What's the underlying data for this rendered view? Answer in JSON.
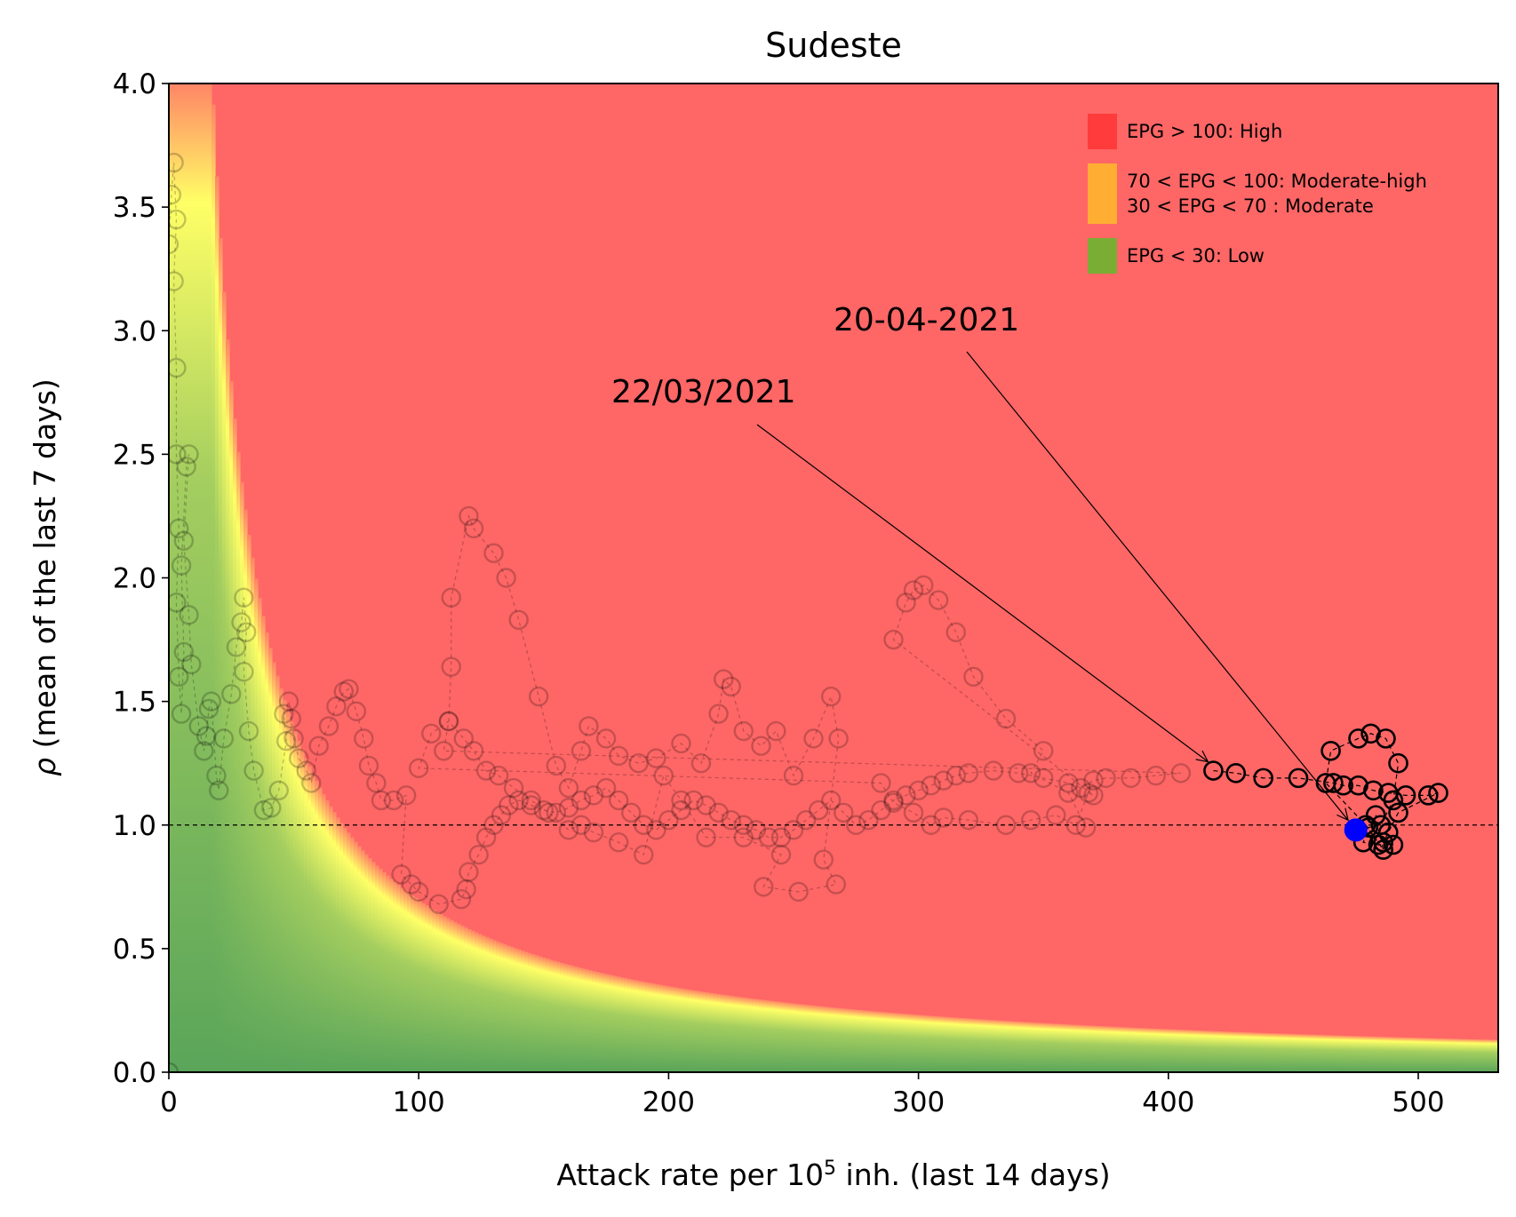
{
  "chart_data": {
    "type": "scatter",
    "title": "Sudeste",
    "xlabel": "Attack rate per 10",
    "xlabel_sup": "5",
    "xlabel_tail": " inh. (last 14 days)",
    "ylabel": "(mean of the last 7 days)",
    "ylabel_symbol": "ρ",
    "xlim": [
      0,
      532
    ],
    "ylim": [
      0,
      4.0
    ],
    "x_ticks": [
      0,
      100,
      200,
      300,
      400,
      500
    ],
    "y_ticks": [
      0.0,
      0.5,
      1.0,
      1.5,
      2.0,
      2.5,
      3.0,
      3.5,
      4.0
    ],
    "x_tick_labels": [
      "0",
      "100",
      "200",
      "300",
      "400",
      "500"
    ],
    "y_tick_labels": [
      "0.0",
      "0.5",
      "1.0",
      "1.5",
      "2.0",
      "2.5",
      "3.0",
      "3.5",
      "4.0"
    ],
    "reference_line_y": 1.0,
    "background": "EPG risk map (attack rate × ρ)",
    "legend_position": "top-right",
    "legend": [
      {
        "label": "EPG > 100: High",
        "color": "#ff3b3b"
      },
      {
        "label": "70 < EPG < 100: Moderate-high",
        "label2": "30 < EPG < 70 : Moderate",
        "color": "#ffae33"
      },
      {
        "label": "EPG < 30: Low",
        "color": "#7aad33"
      }
    ],
    "colors": {
      "high": "#ff6666",
      "moderate_high": "#ffff66",
      "low": "#5aa55a",
      "marker_edge": "#000000",
      "highlight_point": "#0000ff"
    },
    "annotations": [
      {
        "text": "22/03/2021",
        "target": [
          418,
          1.22
        ]
      },
      {
        "text": "20-04-2021",
        "target": [
          473,
          0.98
        ]
      }
    ],
    "series_faded": [
      [
        0,
        0.0
      ],
      [
        0,
        3.35
      ],
      [
        1,
        3.55
      ],
      [
        2,
        3.68
      ],
      [
        3,
        3.45
      ],
      [
        2,
        3.2
      ],
      [
        3,
        2.85
      ],
      [
        3,
        2.5
      ],
      [
        4,
        2.2
      ],
      [
        3,
        1.9
      ],
      [
        4,
        1.6
      ],
      [
        5,
        1.45
      ],
      [
        6,
        1.7
      ],
      [
        5,
        2.05
      ],
      [
        7,
        2.45
      ],
      [
        8,
        2.5
      ],
      [
        6,
        2.15
      ],
      [
        8,
        1.85
      ],
      [
        9,
        1.65
      ],
      [
        12,
        1.4
      ],
      [
        14,
        1.3
      ],
      [
        15,
        1.36
      ],
      [
        16,
        1.47
      ],
      [
        17,
        1.5
      ],
      [
        19,
        1.2
      ],
      [
        20,
        1.14
      ],
      [
        22,
        1.35
      ],
      [
        25,
        1.53
      ],
      [
        27,
        1.72
      ],
      [
        29,
        1.82
      ],
      [
        30,
        1.92
      ],
      [
        31,
        1.78
      ],
      [
        30,
        1.62
      ],
      [
        32,
        1.38
      ],
      [
        34,
        1.22
      ],
      [
        38,
        1.06
      ],
      [
        41,
        1.07
      ],
      [
        44,
        1.14
      ],
      [
        47,
        1.34
      ],
      [
        46,
        1.45
      ],
      [
        48,
        1.5
      ],
      [
        49,
        1.43
      ],
      [
        50,
        1.35
      ],
      [
        52,
        1.27
      ],
      [
        55,
        1.22
      ],
      [
        57,
        1.17
      ],
      [
        60,
        1.32
      ],
      [
        64,
        1.4
      ],
      [
        67,
        1.48
      ],
      [
        70,
        1.54
      ],
      [
        72,
        1.55
      ],
      [
        75,
        1.46
      ],
      [
        78,
        1.35
      ],
      [
        80,
        1.24
      ],
      [
        83,
        1.17
      ],
      [
        85,
        1.1
      ],
      [
        90,
        1.1
      ],
      [
        95,
        1.12
      ],
      [
        93,
        0.8
      ],
      [
        97,
        0.76
      ],
      [
        100,
        0.73
      ],
      [
        108,
        0.68
      ],
      [
        117,
        0.7
      ],
      [
        119,
        0.74
      ],
      [
        120,
        0.81
      ],
      [
        124,
        0.88
      ],
      [
        127,
        0.95
      ],
      [
        130,
        1.0
      ],
      [
        133,
        1.04
      ],
      [
        136,
        1.08
      ],
      [
        140,
        1.1
      ],
      [
        145,
        1.08
      ],
      [
        150,
        1.06
      ],
      [
        155,
        1.05
      ],
      [
        160,
        1.07
      ],
      [
        165,
        1.1
      ],
      [
        170,
        1.12
      ],
      [
        175,
        1.15
      ],
      [
        180,
        1.1
      ],
      [
        185,
        1.05
      ],
      [
        190,
        1.0
      ],
      [
        195,
        0.98
      ],
      [
        200,
        1.02
      ],
      [
        205,
        1.06
      ],
      [
        210,
        1.1
      ],
      [
        215,
        1.08
      ],
      [
        220,
        1.05
      ],
      [
        225,
        1.02
      ],
      [
        230,
        1.0
      ],
      [
        235,
        0.98
      ],
      [
        240,
        0.95
      ],
      [
        245,
        0.95
      ],
      [
        250,
        0.98
      ],
      [
        255,
        1.02
      ],
      [
        260,
        1.06
      ],
      [
        265,
        1.1
      ],
      [
        270,
        1.05
      ],
      [
        275,
        1.0
      ],
      [
        280,
        1.02
      ],
      [
        285,
        1.06
      ],
      [
        290,
        1.1
      ],
      [
        295,
        1.12
      ],
      [
        300,
        1.14
      ],
      [
        305,
        1.16
      ],
      [
        310,
        1.18
      ],
      [
        315,
        1.2
      ],
      [
        320,
        1.21
      ],
      [
        330,
        1.22
      ],
      [
        340,
        1.21
      ],
      [
        350,
        1.19
      ],
      [
        360,
        1.17
      ],
      [
        365,
        1.15
      ],
      [
        370,
        1.18
      ],
      [
        375,
        1.19
      ],
      [
        385,
        1.19
      ],
      [
        395,
        1.2
      ],
      [
        405,
        1.21
      ],
      [
        110,
        1.3
      ],
      [
        112,
        1.42
      ],
      [
        113,
        1.64
      ],
      [
        113,
        1.92
      ],
      [
        120,
        2.25
      ],
      [
        122,
        2.2
      ],
      [
        130,
        2.1
      ],
      [
        135,
        2.0
      ],
      [
        140,
        1.83
      ],
      [
        148,
        1.52
      ],
      [
        155,
        1.24
      ],
      [
        160,
        1.15
      ],
      [
        165,
        1.3
      ],
      [
        168,
        1.4
      ],
      [
        175,
        1.35
      ],
      [
        180,
        1.28
      ],
      [
        188,
        1.25
      ],
      [
        195,
        1.27
      ],
      [
        205,
        1.33
      ],
      [
        213,
        1.25
      ],
      [
        220,
        1.45
      ],
      [
        222,
        1.59
      ],
      [
        225,
        1.56
      ],
      [
        230,
        1.38
      ],
      [
        237,
        1.32
      ],
      [
        243,
        1.38
      ],
      [
        250,
        1.2
      ],
      [
        258,
        1.35
      ],
      [
        265,
        1.52
      ],
      [
        268,
        1.35
      ],
      [
        262,
        0.86
      ],
      [
        267,
        0.76
      ],
      [
        252,
        0.73
      ],
      [
        238,
        0.75
      ],
      [
        245,
        0.88
      ],
      [
        230,
        0.95
      ],
      [
        215,
        0.95
      ],
      [
        205,
        1.1
      ],
      [
        198,
        1.2
      ],
      [
        190,
        0.88
      ],
      [
        180,
        0.93
      ],
      [
        170,
        0.97
      ],
      [
        165,
        1.0
      ],
      [
        160,
        0.98
      ],
      [
        152,
        1.05
      ],
      [
        145,
        1.1
      ],
      [
        138,
        1.15
      ],
      [
        132,
        1.2
      ],
      [
        127,
        1.22
      ],
      [
        122,
        1.3
      ],
      [
        118,
        1.35
      ],
      [
        112,
        1.42
      ],
      [
        105,
        1.37
      ],
      [
        100,
        1.23
      ],
      [
        285,
        1.17
      ],
      [
        290,
        1.09
      ],
      [
        298,
        1.05
      ],
      [
        305,
        1.0
      ],
      [
        310,
        1.03
      ],
      [
        320,
        1.02
      ],
      [
        335,
        1.0
      ],
      [
        345,
        1.02
      ],
      [
        355,
        1.04
      ],
      [
        363,
        1.0
      ],
      [
        368,
        1.13
      ],
      [
        370,
        1.12
      ],
      [
        290,
        1.75
      ],
      [
        295,
        1.9
      ],
      [
        298,
        1.95
      ],
      [
        302,
        1.97
      ],
      [
        308,
        1.91
      ],
      [
        315,
        1.78
      ],
      [
        322,
        1.6
      ],
      [
        335,
        1.43
      ],
      [
        350,
        1.3
      ],
      [
        345,
        1.21
      ],
      [
        360,
        1.13
      ],
      [
        367,
        0.99
      ]
    ],
    "series_recent": [
      [
        418,
        1.22
      ],
      [
        427,
        1.21
      ],
      [
        438,
        1.19
      ],
      [
        452,
        1.19
      ],
      [
        466,
        1.17
      ],
      [
        470,
        1.16
      ],
      [
        476,
        1.16
      ],
      [
        482,
        1.14
      ],
      [
        488,
        1.13
      ],
      [
        495,
        1.12
      ],
      [
        504,
        1.12
      ],
      [
        508,
        1.13
      ],
      [
        492,
        1.05
      ],
      [
        488,
        0.97
      ],
      [
        486,
        0.93
      ],
      [
        490,
        0.92
      ],
      [
        484,
        0.92
      ],
      [
        478,
        0.93
      ],
      [
        480,
        0.99
      ],
      [
        485,
        1.0
      ],
      [
        490,
        1.1
      ],
      [
        492,
        1.25
      ],
      [
        487,
        1.35
      ],
      [
        481,
        1.37
      ],
      [
        476,
        1.35
      ],
      [
        465,
        1.3
      ],
      [
        463,
        1.17
      ],
      [
        479,
        1.0
      ],
      [
        486,
        0.9
      ],
      [
        483,
        1.04
      ]
    ],
    "highlight_point": [
      475,
      0.98
    ]
  }
}
